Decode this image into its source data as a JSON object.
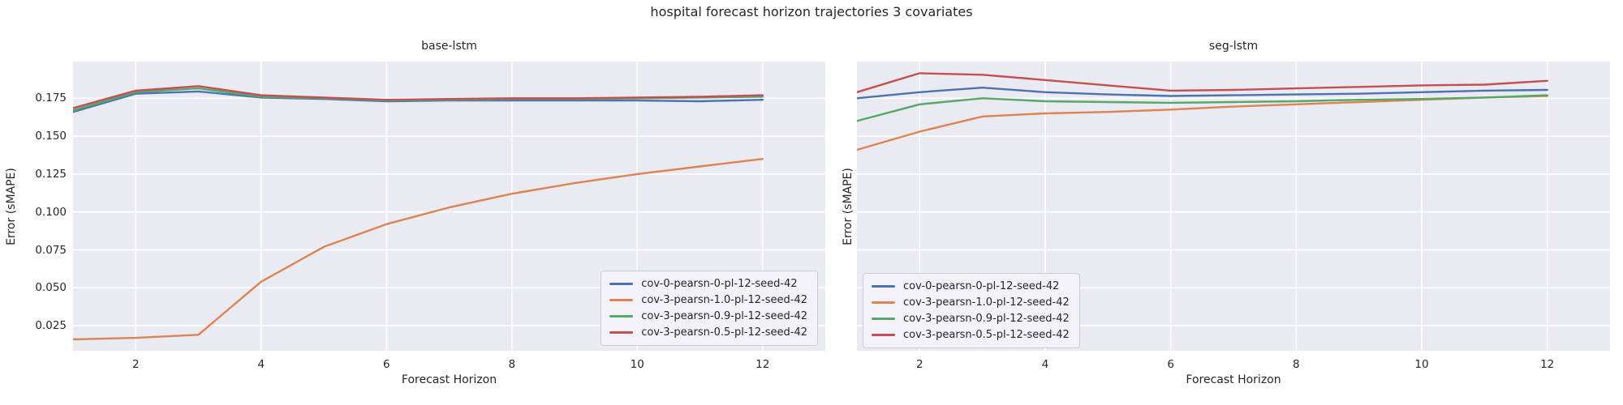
{
  "figure": {
    "title": "hospital forecast horizon trajectories 3 covariates",
    "background": "#FFFFFF",
    "axes_background": "#EAEAF2",
    "grid_color": "#FFFFFF",
    "text_color": "#262626"
  },
  "chart_data": [
    {
      "type": "line",
      "title": "base-lstm",
      "xlabel": "Forecast Horizon",
      "ylabel": "Error (sMAPE)",
      "grid": true,
      "legend_position": "lower right",
      "show_ytick_labels": true,
      "xlim": [
        1,
        13.0
      ],
      "ylim": [
        0.0085,
        0.1992
      ],
      "xticks": [
        2,
        4,
        6,
        8,
        10,
        12
      ],
      "yticks": [
        0.025,
        0.05,
        0.075,
        0.1,
        0.125,
        0.15,
        0.175
      ],
      "x": [
        1,
        2,
        3,
        4,
        5,
        6,
        7,
        8,
        9,
        10,
        11,
        12
      ],
      "series": [
        {
          "name": "cov-0-pearsn-0-pl-12-seed-42",
          "color": "#4C72B0",
          "values": [
            0.166,
            0.178,
            0.1795,
            0.1755,
            0.1745,
            0.173,
            0.1735,
            0.1735,
            0.1735,
            0.1735,
            0.173,
            0.174
          ]
        },
        {
          "name": "cov-3-pearsn-1.0-pl-12-seed-42",
          "color": "#DD8452",
          "values": [
            0.016,
            0.017,
            0.019,
            0.054,
            0.077,
            0.092,
            0.103,
            0.112,
            0.119,
            0.125,
            0.13,
            0.135
          ]
        },
        {
          "name": "cov-3-pearsn-0.9-pl-12-seed-42",
          "color": "#55A868",
          "values": [
            0.167,
            0.179,
            0.1815,
            0.176,
            0.175,
            0.1735,
            0.174,
            0.1745,
            0.1745,
            0.175,
            0.1755,
            0.176
          ]
        },
        {
          "name": "cov-3-pearsn-0.5-pl-12-seed-42",
          "color": "#C44E52",
          "values": [
            0.1685,
            0.18,
            0.183,
            0.177,
            0.1755,
            0.174,
            0.1745,
            0.175,
            0.175,
            0.1755,
            0.176,
            0.177
          ]
        }
      ]
    },
    {
      "type": "line",
      "title": "seg-lstm",
      "xlabel": "Forecast Horizon",
      "ylabel": "Error (sMAPE)",
      "grid": true,
      "legend_position": "lower left",
      "show_ytick_labels": false,
      "xlim": [
        1,
        13.0
      ],
      "ylim": [
        0.0085,
        0.1992
      ],
      "xticks": [
        2,
        4,
        6,
        8,
        10,
        12
      ],
      "yticks": [
        0.025,
        0.05,
        0.075,
        0.1,
        0.125,
        0.15,
        0.175
      ],
      "x": [
        1,
        2,
        3,
        4,
        5,
        6,
        7,
        8,
        9,
        10,
        11,
        12
      ],
      "series": [
        {
          "name": "cov-0-pearsn-0-pl-12-seed-42",
          "color": "#4C72B0",
          "values": [
            0.175,
            0.179,
            0.182,
            0.179,
            0.1775,
            0.1765,
            0.177,
            0.1775,
            0.178,
            0.179,
            0.18,
            0.1805
          ]
        },
        {
          "name": "cov-3-pearsn-1.0-pl-12-seed-42",
          "color": "#DD8452",
          "values": [
            0.141,
            0.153,
            0.163,
            0.165,
            0.166,
            0.1675,
            0.1695,
            0.171,
            0.1725,
            0.174,
            0.1755,
            0.1765
          ]
        },
        {
          "name": "cov-3-pearsn-0.9-pl-12-seed-42",
          "color": "#55A868",
          "values": [
            0.16,
            0.171,
            0.175,
            0.173,
            0.1725,
            0.172,
            0.1725,
            0.173,
            0.174,
            0.1745,
            0.1755,
            0.177
          ]
        },
        {
          "name": "cov-3-pearsn-0.5-pl-12-seed-42",
          "color": "#C44E52",
          "values": [
            0.179,
            0.1915,
            0.1905,
            0.187,
            0.1835,
            0.18,
            0.1805,
            0.1815,
            0.1825,
            0.1835,
            0.184,
            0.1865
          ]
        }
      ]
    }
  ]
}
